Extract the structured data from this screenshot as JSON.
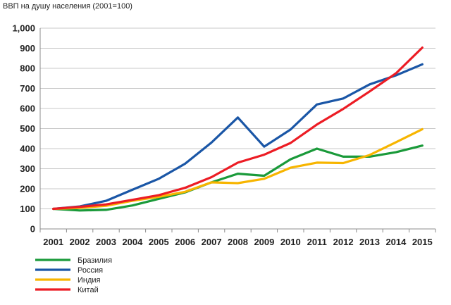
{
  "chart_data": {
    "type": "line",
    "title": "ВВП на душу населения (2001=100)",
    "xlabel": "",
    "ylabel": "",
    "x": [
      "2001",
      "2002",
      "2003",
      "2004",
      "2005",
      "2006",
      "2007",
      "2008",
      "2009",
      "2010",
      "2011",
      "2012",
      "2013",
      "2014",
      "2015"
    ],
    "ylim": [
      0,
      1000
    ],
    "yticks": [
      {
        "value": 0,
        "label": "0"
      },
      {
        "value": 100,
        "label": "100"
      },
      {
        "value": 200,
        "label": "200"
      },
      {
        "value": 300,
        "label": "300"
      },
      {
        "value": 400,
        "label": "400"
      },
      {
        "value": 500,
        "label": "500"
      },
      {
        "value": 600,
        "label": "600"
      },
      {
        "value": 700,
        "label": "700"
      },
      {
        "value": 800,
        "label": "800"
      },
      {
        "value": 900,
        "label": "900"
      },
      {
        "value": 1000,
        "label": "1,000"
      }
    ],
    "grid": "horizontal",
    "legend_position": "bottom-left",
    "series": [
      {
        "name": "Бразилия",
        "color": "#1a9a3a",
        "values": [
          100,
          92,
          95,
          117,
          150,
          182,
          232,
          275,
          265,
          347,
          400,
          360,
          360,
          382,
          415
        ]
      },
      {
        "name": "Россия",
        "color": "#1a56a6",
        "values": [
          100,
          112,
          140,
          195,
          250,
          325,
          430,
          555,
          410,
          495,
          620,
          650,
          720,
          765,
          820
        ]
      },
      {
        "name": "Индия",
        "color": "#f7b500",
        "values": [
          100,
          105,
          115,
          140,
          160,
          185,
          232,
          228,
          250,
          305,
          330,
          328,
          368,
          432,
          497
        ]
      },
      {
        "name": "Китай",
        "color": "#ec1c24",
        "values": [
          100,
          110,
          122,
          145,
          168,
          205,
          258,
          330,
          370,
          428,
          520,
          598,
          685,
          775,
          903
        ]
      }
    ]
  }
}
